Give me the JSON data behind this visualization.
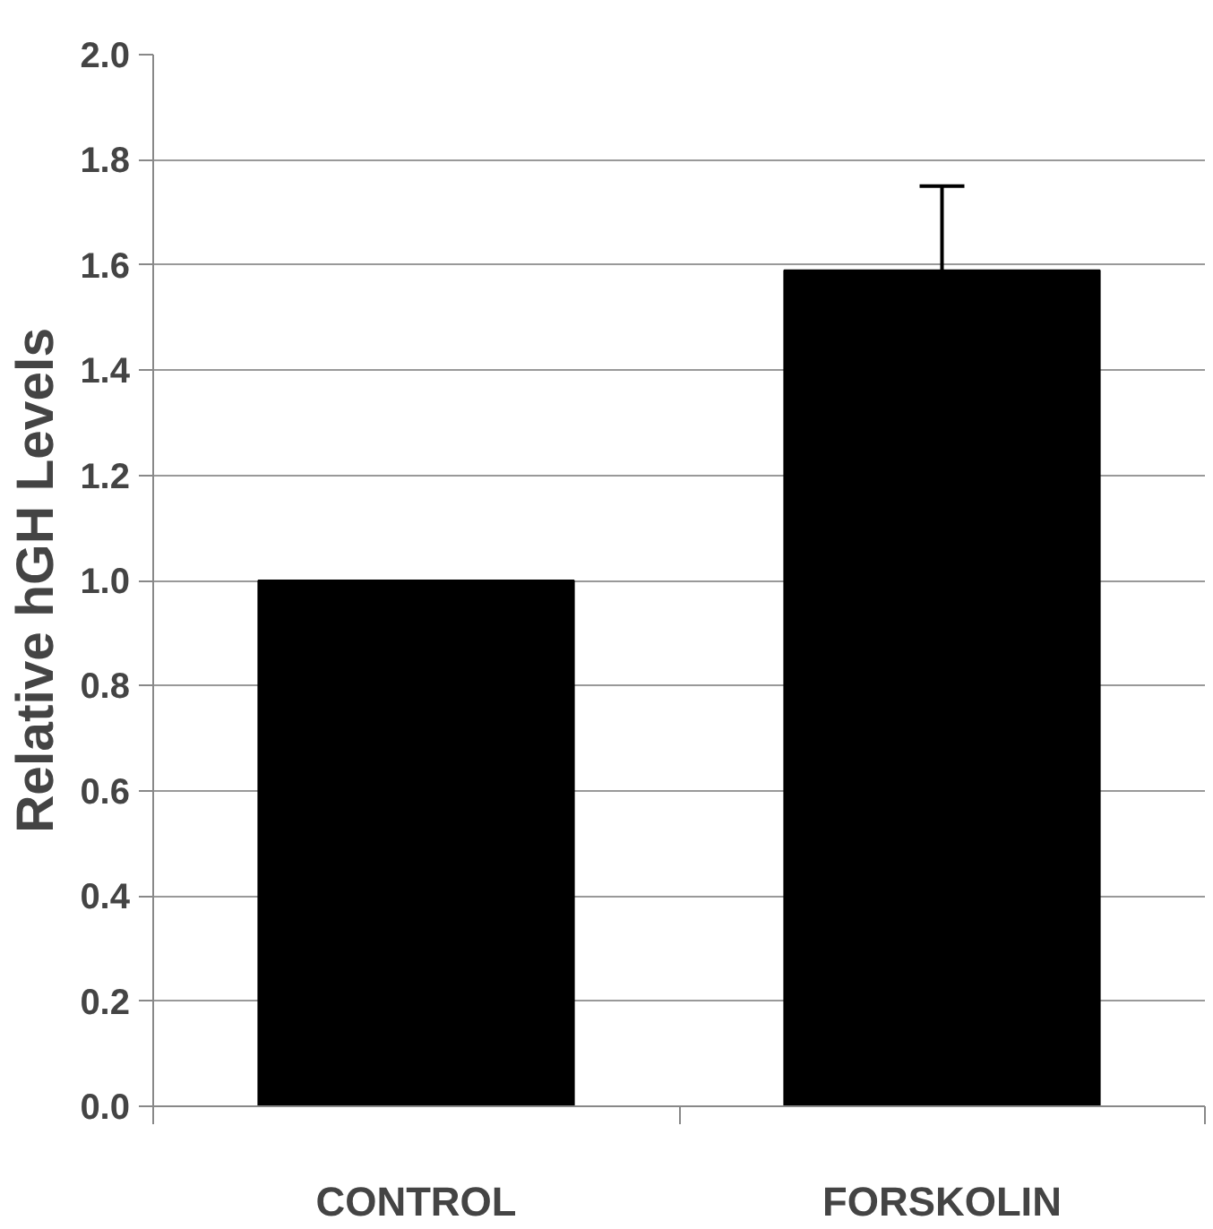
{
  "chart_data": {
    "type": "bar",
    "ylabel": "Relative hGH Levels",
    "categories": [
      "CONTROL",
      "FORSKOLIN"
    ],
    "values": [
      1.0,
      1.59
    ],
    "errors": [
      null,
      0.16
    ],
    "color": "#000000",
    "ylim": [
      0,
      2.0
    ],
    "yticks": [
      {
        "value": 0,
        "label": "0.0"
      },
      {
        "value": 0.2,
        "label": "0.2"
      },
      {
        "value": 0.4,
        "label": "0.4"
      },
      {
        "value": 0.6,
        "label": "0.6"
      },
      {
        "value": 0.8,
        "label": "0.8"
      },
      {
        "value": 1.0,
        "label": "1.0"
      },
      {
        "value": 1.2,
        "label": "1.2"
      },
      {
        "value": 1.4,
        "label": "1.4"
      },
      {
        "value": 1.6,
        "label": "1.6"
      },
      {
        "value": 1.8,
        "label": "1.8"
      },
      {
        "value": 2.0,
        "label": "2.0"
      }
    ],
    "grid": "y"
  }
}
